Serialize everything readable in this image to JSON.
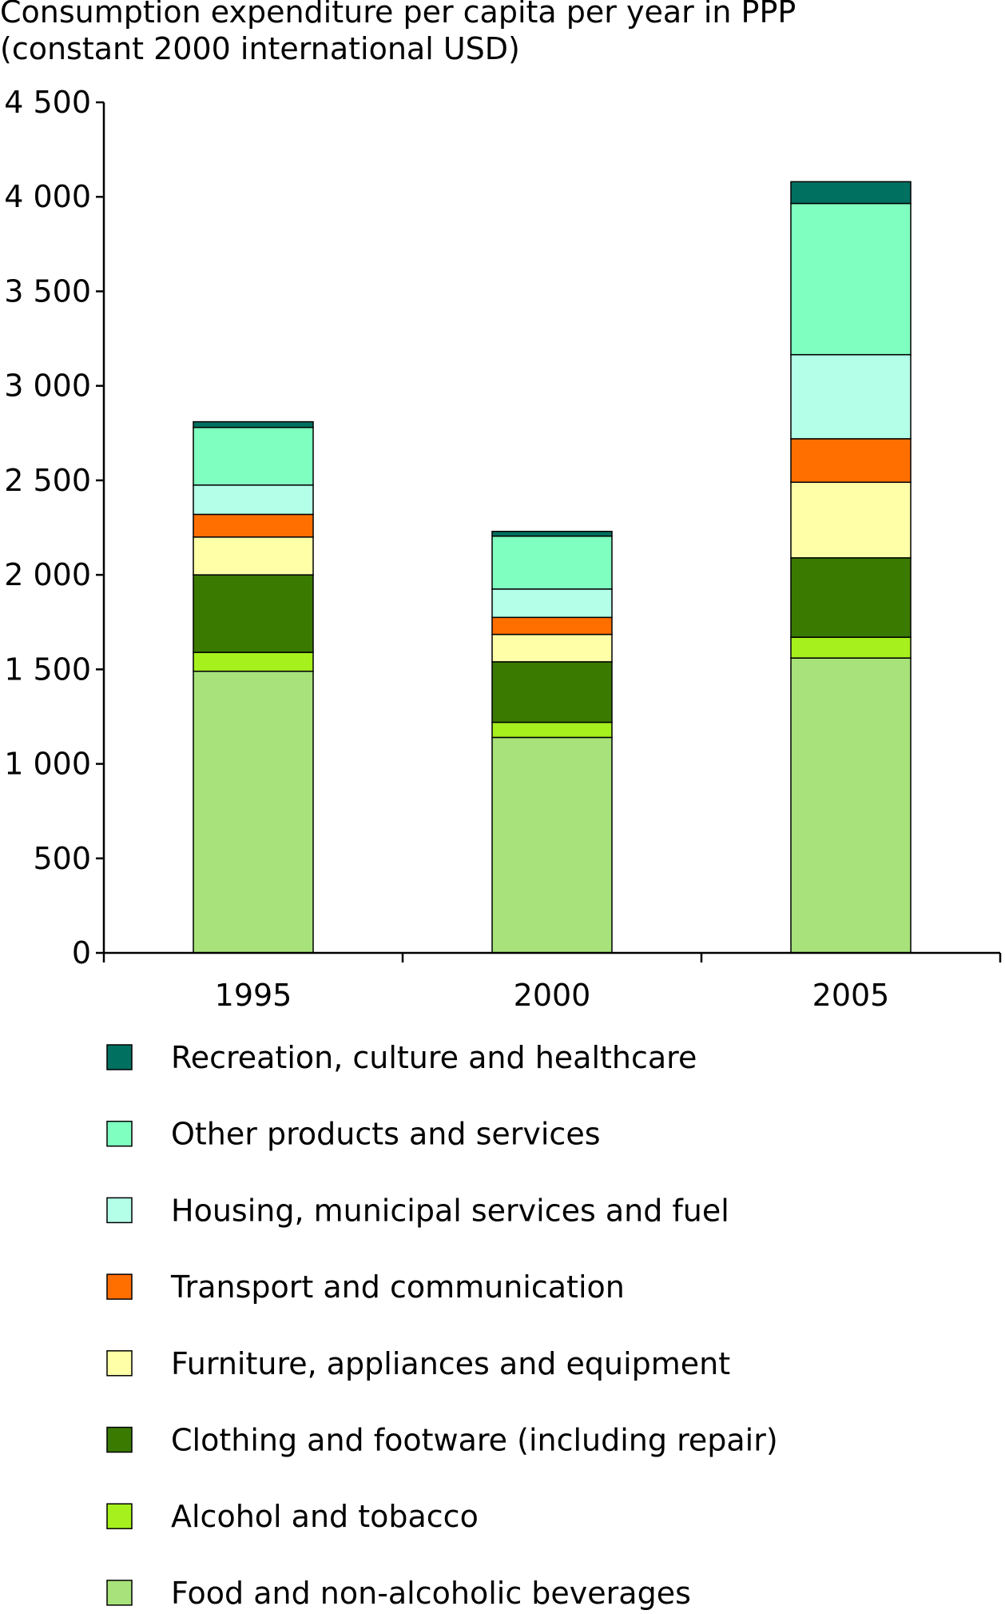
{
  "chart_data": {
    "type": "bar",
    "stacked": true,
    "ylabel": [
      "Consumption expenditure per capita per year in PPP",
      "(constant 2000 international USD)"
    ],
    "xlabel": "",
    "ylim": [
      0,
      4500
    ],
    "yticks": [
      0,
      500,
      1000,
      1500,
      2000,
      2500,
      3000,
      3500,
      4000,
      4500
    ],
    "ytick_labels": [
      "0",
      "500",
      "1 000",
      "1 500",
      "2 000",
      "2 500",
      "3 000",
      "3 500",
      "4 000",
      "4 500"
    ],
    "categories": [
      "1995",
      "2000",
      "2005"
    ],
    "legend_position": "bottom",
    "grid": false,
    "series": [
      {
        "name": "Food and non-alcoholic beverages",
        "color": "#a8e27a",
        "values": [
          1490,
          1140,
          1560
        ]
      },
      {
        "name": "Alcohol and tobacco",
        "color": "#a6f01e",
        "values": [
          100,
          80,
          110
        ]
      },
      {
        "name": "Clothing and footware (including repair)",
        "color": "#3a7a00",
        "values": [
          410,
          320,
          420
        ]
      },
      {
        "name": "Furniture, appliances and equipment",
        "color": "#ffffa8",
        "values": [
          200,
          145,
          400
        ]
      },
      {
        "name": "Transport and communication",
        "color": "#ff6f00",
        "values": [
          120,
          90,
          230
        ]
      },
      {
        "name": "Housing, municipal services and fuel",
        "color": "#b4ffe8",
        "values": [
          155,
          150,
          445
        ]
      },
      {
        "name": "Other products and services",
        "color": "#7fffc0",
        "values": [
          305,
          280,
          800
        ]
      },
      {
        "name": "Recreation, culture and healthcare",
        "color": "#007060",
        "values": [
          30,
          25,
          115
        ]
      }
    ]
  }
}
